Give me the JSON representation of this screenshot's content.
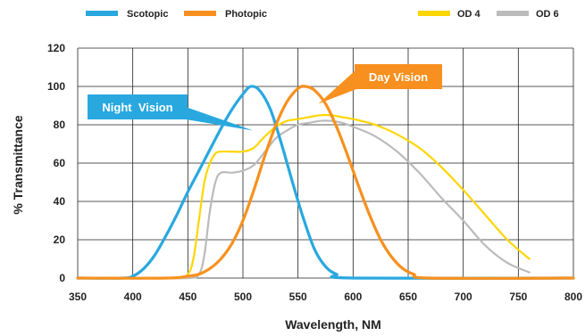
{
  "chart_data": {
    "type": "line",
    "xlabel": "Wavelength, NM",
    "ylabel": "% Transmittance",
    "xlim": [
      350,
      800
    ],
    "ylim": [
      0,
      120
    ],
    "x_ticks": [
      350,
      400,
      450,
      500,
      550,
      600,
      650,
      700,
      750,
      800
    ],
    "y_ticks": [
      0,
      20,
      40,
      60,
      80,
      100,
      120
    ],
    "grid": true,
    "legend_position": "top",
    "series": [
      {
        "name": "Scotopic",
        "color": "#29a8e0",
        "points": [
          [
            350,
            0
          ],
          [
            390,
            0
          ],
          [
            400,
            1
          ],
          [
            410,
            5
          ],
          [
            420,
            12
          ],
          [
            430,
            22
          ],
          [
            440,
            33
          ],
          [
            450,
            45
          ],
          [
            460,
            56
          ],
          [
            470,
            67
          ],
          [
            480,
            78
          ],
          [
            490,
            88
          ],
          [
            500,
            96
          ],
          [
            507,
            100
          ],
          [
            515,
            98
          ],
          [
            525,
            88
          ],
          [
            535,
            70
          ],
          [
            545,
            50
          ],
          [
            555,
            31
          ],
          [
            565,
            15
          ],
          [
            575,
            6
          ],
          [
            585,
            2
          ],
          [
            600,
            0
          ],
          [
            800,
            0
          ]
        ]
      },
      {
        "name": "Photopic",
        "color": "#f7901e",
        "points": [
          [
            350,
            0
          ],
          [
            430,
            0
          ],
          [
            450,
            1
          ],
          [
            460,
            2
          ],
          [
            470,
            5
          ],
          [
            480,
            10
          ],
          [
            490,
            18
          ],
          [
            500,
            30
          ],
          [
            510,
            46
          ],
          [
            520,
            64
          ],
          [
            530,
            80
          ],
          [
            540,
            92
          ],
          [
            550,
            99
          ],
          [
            557,
            100
          ],
          [
            565,
            98
          ],
          [
            575,
            91
          ],
          [
            585,
            79
          ],
          [
            595,
            64
          ],
          [
            605,
            48
          ],
          [
            615,
            33
          ],
          [
            625,
            20
          ],
          [
            635,
            11
          ],
          [
            645,
            5
          ],
          [
            655,
            2
          ],
          [
            670,
            0
          ],
          [
            800,
            0
          ]
        ]
      },
      {
        "name": "OD 4",
        "color": "#ffd600",
        "points": [
          [
            350,
            0
          ],
          [
            400,
            0
          ],
          [
            440,
            0
          ],
          [
            450,
            2
          ],
          [
            455,
            10
          ],
          [
            460,
            30
          ],
          [
            465,
            50
          ],
          [
            470,
            60
          ],
          [
            475,
            65
          ],
          [
            480,
            66
          ],
          [
            490,
            66
          ],
          [
            500,
            66
          ],
          [
            510,
            68
          ],
          [
            520,
            74
          ],
          [
            530,
            79
          ],
          [
            540,
            82
          ],
          [
            550,
            83
          ],
          [
            560,
            84
          ],
          [
            570,
            85
          ],
          [
            580,
            85
          ],
          [
            590,
            84
          ],
          [
            600,
            83
          ],
          [
            620,
            80
          ],
          [
            640,
            75
          ],
          [
            660,
            68
          ],
          [
            680,
            58
          ],
          [
            700,
            46
          ],
          [
            720,
            33
          ],
          [
            740,
            20
          ],
          [
            760,
            10
          ]
        ]
      },
      {
        "name": "OD 6",
        "color": "#bbbbbb",
        "points": [
          [
            350,
            0
          ],
          [
            400,
            0
          ],
          [
            450,
            0
          ],
          [
            460,
            2
          ],
          [
            465,
            12
          ],
          [
            470,
            35
          ],
          [
            475,
            50
          ],
          [
            480,
            55
          ],
          [
            490,
            55
          ],
          [
            500,
            56
          ],
          [
            510,
            59
          ],
          [
            520,
            66
          ],
          [
            530,
            73
          ],
          [
            540,
            77
          ],
          [
            550,
            80
          ],
          [
            560,
            81
          ],
          [
            570,
            82
          ],
          [
            580,
            82
          ],
          [
            590,
            81
          ],
          [
            600,
            79
          ],
          [
            620,
            74
          ],
          [
            640,
            66
          ],
          [
            660,
            55
          ],
          [
            680,
            42
          ],
          [
            700,
            30
          ],
          [
            720,
            17
          ],
          [
            740,
            8
          ],
          [
            760,
            3
          ]
        ]
      }
    ],
    "annotations": [
      {
        "text": "Night  Vision",
        "color": "#29a8e0",
        "points_to": [
          510,
          77
        ]
      },
      {
        "text": "Day Vision",
        "color": "#f7901e",
        "points_to": [
          567,
          91
        ]
      }
    ]
  }
}
